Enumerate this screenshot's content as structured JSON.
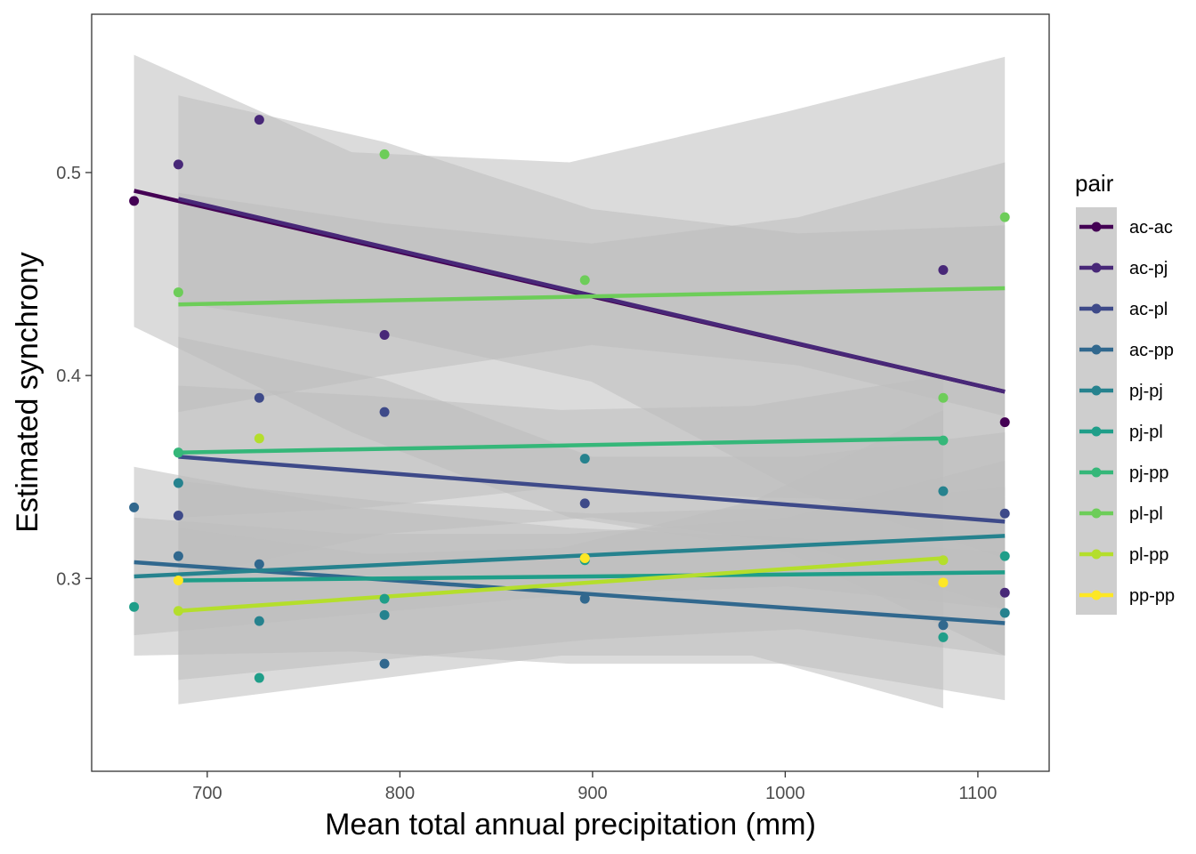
{
  "chart_data": {
    "type": "scatter",
    "xlabel": "Mean total annual precipitation (mm)",
    "ylabel": "Estimated synchrony",
    "xlim": [
      640,
      1137
    ],
    "ylim": [
      0.205,
      0.578
    ],
    "x_ticks": [
      700,
      800,
      900,
      1000,
      1100
    ],
    "x_tick_labels": [
      "700",
      "800",
      "900",
      "1000",
      "1100"
    ],
    "y_ticks": [
      0.3,
      0.4,
      0.5
    ],
    "y_tick_labels": [
      "0.3",
      "0.4",
      "0.5"
    ],
    "grid": false,
    "legend_title": "pair",
    "legend_position": "right",
    "ribbon_color": "#bdbdbd",
    "series": [
      {
        "name": "ac-ac",
        "color": "#440154",
        "points": [
          [
            662,
            0.486
          ],
          [
            1114,
            0.377
          ]
        ],
        "fit": [
          [
            662,
            0.491
          ],
          [
            1114,
            0.392
          ]
        ],
        "band_lower": [
          0.424,
          0.372,
          0.33,
          0.313,
          0.262
        ],
        "band_upper": [
          0.558,
          0.51,
          0.505,
          0.53,
          0.557
        ]
      },
      {
        "name": "ac-pj",
        "color": "#482878",
        "points": [
          [
            685,
            0.504
          ],
          [
            727,
            0.526
          ],
          [
            792,
            0.42
          ],
          [
            1082,
            0.452
          ],
          [
            1114,
            0.293
          ]
        ],
        "fit": [
          [
            685,
            0.487
          ],
          [
            1114,
            0.392
          ]
        ],
        "band_lower": [
          0.436,
          0.42,
          0.397,
          0.343,
          0.31
        ],
        "band_upper": [
          0.538,
          0.515,
          0.482,
          0.47,
          0.474
        ]
      },
      {
        "name": "ac-pl",
        "color": "#3E4A89",
        "points": [
          [
            685,
            0.331
          ],
          [
            727,
            0.389
          ],
          [
            792,
            0.382
          ],
          [
            896,
            0.337
          ],
          [
            1114,
            0.332
          ]
        ],
        "fit": [
          [
            685,
            0.36
          ],
          [
            1114,
            0.328
          ]
        ],
        "band_lower": [
          0.3,
          0.322,
          0.33,
          0.317,
          0.285
        ],
        "band_upper": [
          0.419,
          0.398,
          0.36,
          0.36,
          0.372
        ]
      },
      {
        "name": "ac-pp",
        "color": "#31688E",
        "points": [
          [
            662,
            0.335
          ],
          [
            685,
            0.311
          ],
          [
            727,
            0.307
          ],
          [
            792,
            0.258
          ],
          [
            896,
            0.29
          ],
          [
            1082,
            0.277
          ]
        ],
        "fit": [
          [
            662,
            0.308
          ],
          [
            1114,
            0.278
          ]
        ],
        "band_lower": [
          0.262,
          0.264,
          0.258,
          0.258,
          0.24
        ],
        "band_upper": [
          0.355,
          0.335,
          0.325,
          0.32,
          0.313
        ]
      },
      {
        "name": "pj-pj",
        "color": "#26828E",
        "points": [
          [
            685,
            0.347
          ],
          [
            727,
            0.279
          ],
          [
            792,
            0.282
          ],
          [
            896,
            0.359
          ],
          [
            1082,
            0.343
          ],
          [
            1114,
            0.283
          ]
        ],
        "fit": [
          [
            662,
            0.301
          ],
          [
            1114,
            0.321
          ]
        ],
        "band_lower": [
          0.272,
          0.282,
          0.292,
          0.296,
          0.285
        ],
        "band_upper": [
          0.33,
          0.322,
          0.322,
          0.33,
          0.358
        ]
      },
      {
        "name": "pj-pl",
        "color": "#1F9E89",
        "points": [
          [
            662,
            0.286
          ],
          [
            685,
            0.362
          ],
          [
            727,
            0.251
          ],
          [
            792,
            0.29
          ],
          [
            896,
            0.309
          ],
          [
            1082,
            0.271
          ],
          [
            1114,
            0.311
          ]
        ],
        "fit": [
          [
            685,
            0.299
          ],
          [
            1114,
            0.303
          ]
        ],
        "band_lower": [
          0.25,
          0.26,
          0.27,
          0.275,
          0.262
        ],
        "band_upper": [
          0.348,
          0.338,
          0.332,
          0.335,
          0.345
        ]
      },
      {
        "name": "pj-pp",
        "color": "#35B779",
        "points": [
          [
            685,
            0.362
          ],
          [
            1082,
            0.368
          ]
        ],
        "fit": [
          [
            685,
            0.362
          ],
          [
            1082,
            0.369
          ]
        ],
        "band_lower": [
          0.33,
          0.335,
          0.345,
          0.34,
          0.338
        ],
        "band_upper": [
          0.395,
          0.39,
          0.383,
          0.385,
          0.4
        ]
      },
      {
        "name": "pl-pl",
        "color": "#6DCD59",
        "points": [
          [
            685,
            0.441
          ],
          [
            792,
            0.509
          ],
          [
            896,
            0.447
          ],
          [
            1082,
            0.389
          ],
          [
            1114,
            0.478
          ]
        ],
        "fit": [
          [
            685,
            0.435
          ],
          [
            1114,
            0.443
          ]
        ],
        "band_lower": [
          0.382,
          0.4,
          0.415,
          0.405,
          0.38
        ],
        "band_upper": [
          0.49,
          0.475,
          0.465,
          0.478,
          0.505
        ]
      },
      {
        "name": "pl-pp",
        "color": "#B4DE2C",
        "points": [
          [
            685,
            0.284
          ],
          [
            727,
            0.369
          ],
          [
            1082,
            0.309
          ]
        ],
        "fit": [
          [
            685,
            0.284
          ],
          [
            1082,
            0.31
          ]
        ],
        "band_lower": [
          0.238,
          0.25,
          0.262,
          0.262,
          0.236
        ],
        "band_upper": [
          0.325,
          0.312,
          0.315,
          0.338,
          0.383
        ]
      },
      {
        "name": "pp-pp",
        "color": "#FDE725",
        "points": [
          [
            685,
            0.299
          ],
          [
            896,
            0.31
          ],
          [
            1082,
            0.298
          ]
        ],
        "fit": [],
        "band_lower": [],
        "band_upper": []
      }
    ]
  }
}
